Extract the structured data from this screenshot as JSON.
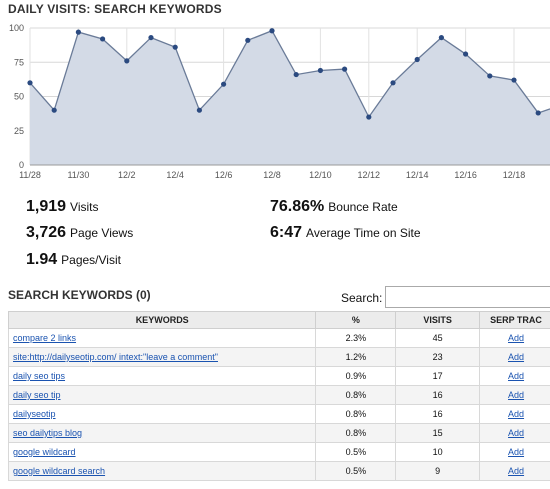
{
  "chart_data": {
    "type": "area",
    "title": "DAILY VISITS: SEARCH KEYWORDS",
    "y_ticks": [
      "100",
      "75",
      "50",
      "25",
      "0"
    ],
    "ylim": [
      0,
      100
    ],
    "x_ticks": [
      "11/28",
      "11/30",
      "12/2",
      "12/4",
      "12/6",
      "12/8",
      "12/10",
      "12/12",
      "12/14",
      "12/16",
      "12/18"
    ],
    "values": [
      60,
      40,
      97,
      92,
      76,
      93,
      86,
      40,
      59,
      91,
      98,
      66,
      69,
      70,
      35,
      60,
      77,
      93,
      81,
      65,
      62,
      38,
      44
    ],
    "grid": true,
    "fill_color": "#d3dae6",
    "line_color": "#6a7b98",
    "point_color": "#2b4a80"
  },
  "stats": {
    "visits": {
      "value": "1,919",
      "label": "Visits"
    },
    "pageviews": {
      "value": "3,726",
      "label": "Page Views"
    },
    "pages_per_visit": {
      "value": "1.94",
      "label": "Pages/Visit"
    },
    "bounce_rate": {
      "value": "76.86%",
      "label": "Bounce Rate"
    },
    "avg_time": {
      "value": "6:47",
      "label": "Average Time on Site"
    }
  },
  "keywords_section": {
    "title": "SEARCH KEYWORDS (0)",
    "search_label": "Search:",
    "search_value": "",
    "columns": [
      "KEYWORDS",
      "%",
      "VISITS",
      "SERP TRAC"
    ],
    "rows": [
      {
        "keyword": "compare 2 links",
        "pct": "2.3%",
        "visits": "45",
        "action": "Add"
      },
      {
        "keyword": "site:http://dailyseotip.com/ intext:\"leave a comment\"",
        "pct": "1.2%",
        "visits": "23",
        "action": "Add"
      },
      {
        "keyword": "daily seo tips",
        "pct": "0.9%",
        "visits": "17",
        "action": "Add"
      },
      {
        "keyword": "daily seo tip",
        "pct": "0.8%",
        "visits": "16",
        "action": "Add"
      },
      {
        "keyword": "dailyseotip",
        "pct": "0.8%",
        "visits": "16",
        "action": "Add"
      },
      {
        "keyword": "seo dailytips blog",
        "pct": "0.8%",
        "visits": "15",
        "action": "Add"
      },
      {
        "keyword": "google wildcard",
        "pct": "0.5%",
        "visits": "10",
        "action": "Add"
      },
      {
        "keyword": "google wildcard search",
        "pct": "0.5%",
        "visits": "9",
        "action": "Add"
      }
    ]
  }
}
